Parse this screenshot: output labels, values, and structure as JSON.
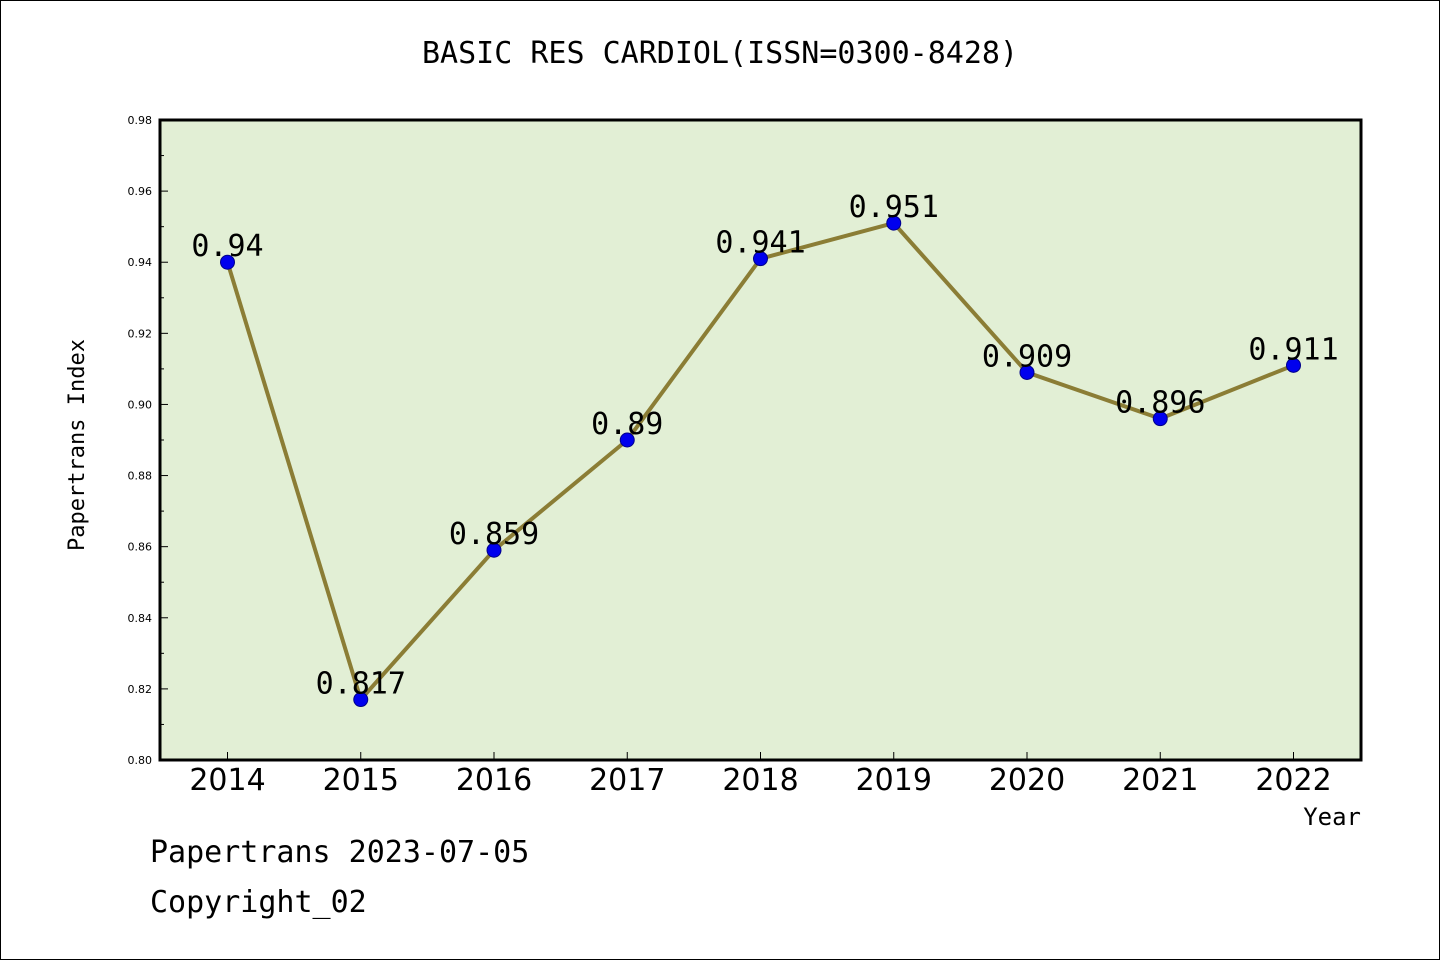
{
  "chart_data": {
    "type": "line",
    "title": "BASIC RES CARDIOL(ISSN=0300-8428)",
    "xlabel": "Year",
    "ylabel": "Papertrans Index",
    "categories": [
      "2014",
      "2015",
      "2016",
      "2017",
      "2018",
      "2019",
      "2020",
      "2021",
      "2022"
    ],
    "series": [
      {
        "values": [
          0.94,
          0.817,
          0.859,
          0.89,
          0.941,
          0.951,
          0.909,
          0.896,
          0.911
        ],
        "labels": [
          "0.94",
          "0.817",
          "0.859",
          "0.89",
          "0.941",
          "0.951",
          "0.909",
          "0.896",
          "0.911"
        ]
      }
    ],
    "ylim": [
      0.8,
      0.98
    ],
    "yticks": [
      "0.80",
      "0.82",
      "0.84",
      "0.86",
      "0.88",
      "0.90",
      "0.92",
      "0.94",
      "0.96",
      "0.98"
    ],
    "grid": false,
    "colors": {
      "plot_background": "#e2efd5",
      "line": "#8b7d35",
      "marker": "#0000ee",
      "axis": "#000000"
    }
  },
  "footer": {
    "line1": "Papertrans 2023-07-05",
    "line2": "Copyright_02"
  }
}
